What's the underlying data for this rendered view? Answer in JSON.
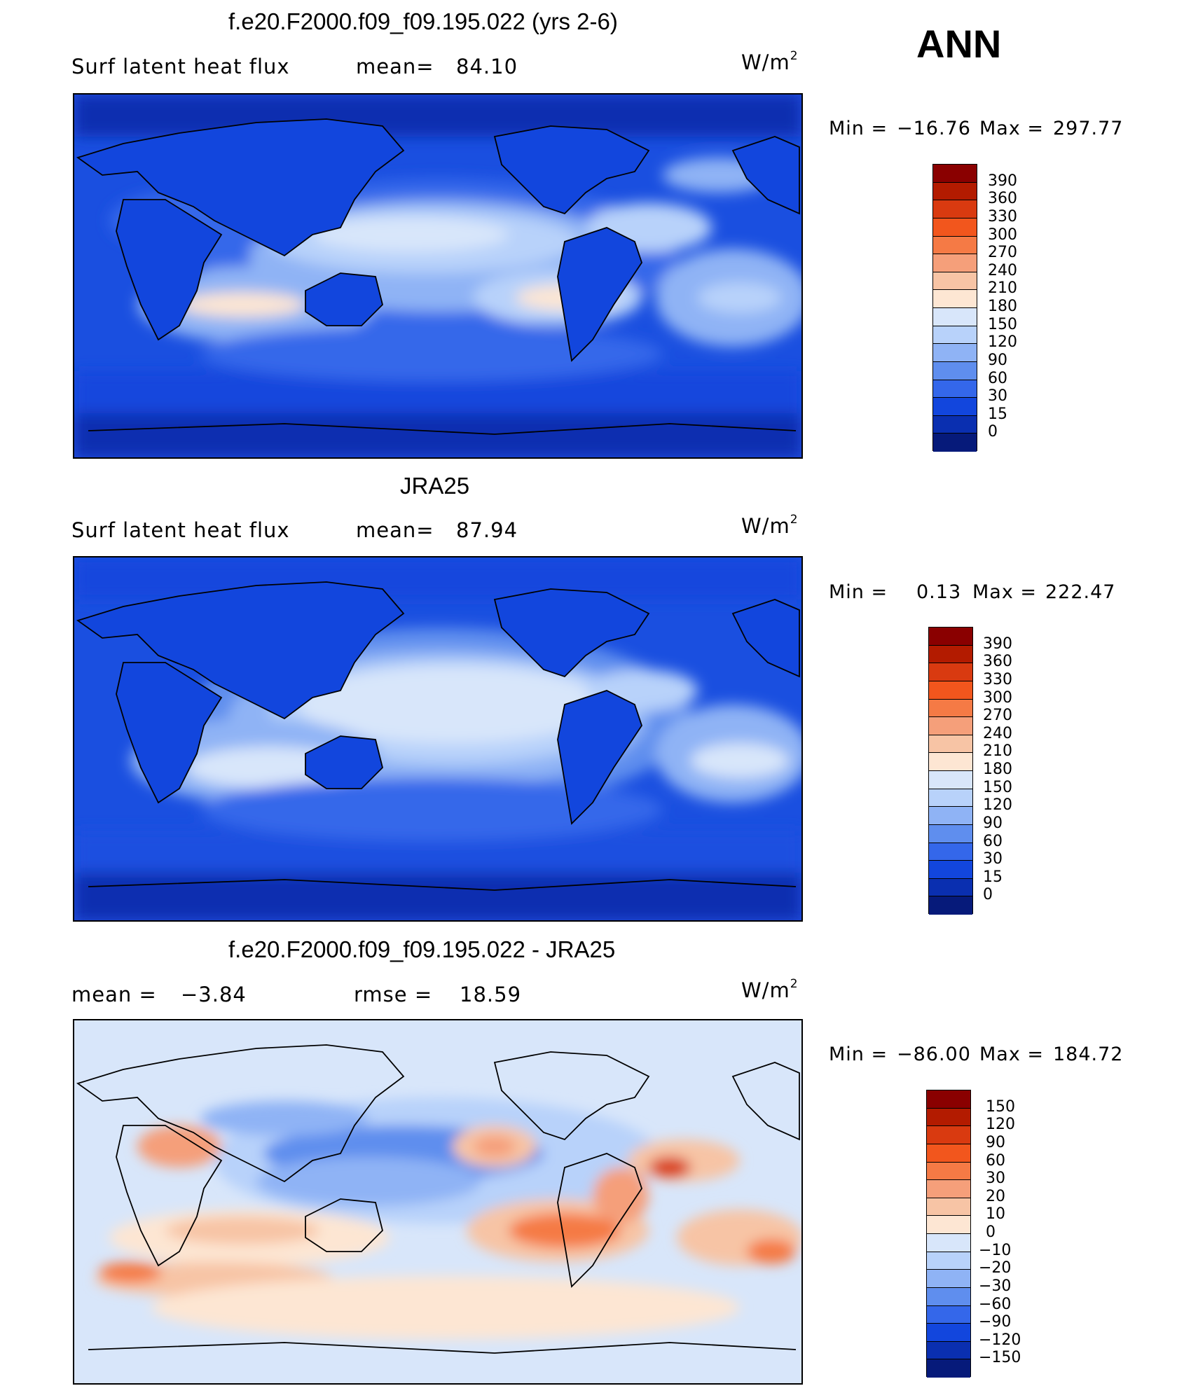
{
  "season": "ANN",
  "panels": [
    {
      "title": "f.e20.F2000.f09_f09.195.022 (yrs 2-6)",
      "left_text": "Surf latent heat flux",
      "mean_label": "mean=",
      "mean_value": "84.10",
      "units": "W/m",
      "units_exp": "2",
      "min_label": "Min =",
      "min_value": "−16.76",
      "max_label": "Max =",
      "max_value": "297.77",
      "colorbar_labels": [
        "390",
        "360",
        "330",
        "300",
        "270",
        "240",
        "210",
        "180",
        "150",
        "120",
        "90",
        "60",
        "30",
        "15",
        "0"
      ],
      "colorbar_colors": [
        "#8a0000",
        "#b31b00",
        "#d93a10",
        "#f2561d",
        "#f57a45",
        "#f59f7a",
        "#f7c4a5",
        "#fde6d3",
        "#d8e6fa",
        "#b8d2fa",
        "#8fb3f5",
        "#5f8eee",
        "#3467ea",
        "#1246dd",
        "#0a2fb0",
        "#061a7a"
      ]
    },
    {
      "title": "JRA25",
      "left_text": "Surf latent heat flux",
      "mean_label": "mean=",
      "mean_value": "87.94",
      "units": "W/m",
      "units_exp": "2",
      "min_label": "Min =",
      "min_value": "0.13",
      "max_label": "Max =",
      "max_value": "222.47",
      "colorbar_labels": [
        "390",
        "360",
        "330",
        "300",
        "270",
        "240",
        "210",
        "180",
        "150",
        "120",
        "90",
        "60",
        "30",
        "15",
        "0"
      ],
      "colorbar_colors": [
        "#8a0000",
        "#b31b00",
        "#d93a10",
        "#f2561d",
        "#f57a45",
        "#f59f7a",
        "#f7c4a5",
        "#fde6d3",
        "#d8e6fa",
        "#b8d2fa",
        "#8fb3f5",
        "#5f8eee",
        "#3467ea",
        "#1246dd",
        "#0a2fb0",
        "#061a7a"
      ]
    },
    {
      "title": "f.e20.F2000.f09_f09.195.022 - JRA25",
      "left_text": "mean =",
      "left_value": "−3.84",
      "mean_label": "rmse =",
      "mean_value": "18.59",
      "units": "W/m",
      "units_exp": "2",
      "min_label": "Min =",
      "min_value": "−86.00",
      "max_label": "Max =",
      "max_value": "184.72",
      "colorbar_labels": [
        "150",
        "120",
        "90",
        "60",
        "30",
        "20",
        "10",
        "0",
        "−10",
        "−20",
        "−30",
        "−60",
        "−90",
        "−120",
        "−150"
      ],
      "colorbar_colors": [
        "#8a0000",
        "#b31b00",
        "#d93a10",
        "#f2561d",
        "#f57a45",
        "#f59f7a",
        "#f7c4a5",
        "#fde6d3",
        "#d8e6fa",
        "#b8d2fa",
        "#8fb3f5",
        "#5f8eee",
        "#3467ea",
        "#1246dd",
        "#0a2fb0",
        "#061a7a"
      ]
    }
  ]
}
